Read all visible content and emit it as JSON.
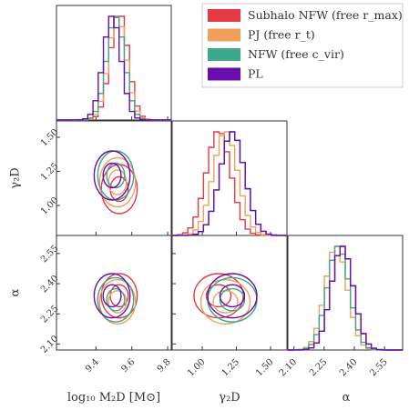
{
  "chart_data": {
    "type": "corner",
    "parameters": [
      {
        "key": "m2d",
        "label": "log₁₀ M₂D [M⊙]",
        "range": [
          9.18,
          9.82
        ],
        "ticks": [
          9.4,
          9.6,
          9.8
        ],
        "tick_labels": [
          "9.4",
          "9.6",
          "9.8"
        ]
      },
      {
        "key": "g2d",
        "label": "γ₂D",
        "range": [
          0.78,
          1.62
        ],
        "ticks": [
          1.0,
          1.25,
          1.5
        ],
        "tick_labels": [
          "1.00",
          "1.25",
          "1.50"
        ]
      },
      {
        "key": "alpha",
        "label": "α",
        "range": [
          2.07,
          2.64
        ],
        "ticks": [
          2.1,
          2.25,
          2.4,
          2.55
        ],
        "tick_labels": [
          "2.10",
          "2.25",
          "2.40",
          "2.55"
        ]
      }
    ],
    "legend": {
      "placement": "top-right"
    },
    "series": [
      {
        "name": "Subhalo NFW (free r_max)",
        "color": "#e63946",
        "mean": [
          9.53,
          1.12,
          2.34
        ],
        "sd": [
          0.05,
          0.09,
          0.055
        ]
      },
      {
        "name": "PJ (free r_t)",
        "color": "#f0a05a",
        "mean": [
          9.52,
          1.17,
          2.31
        ],
        "sd": [
          0.05,
          0.09,
          0.055
        ]
      },
      {
        "name": "NFW (free c_vir)",
        "color": "#3aa88a",
        "mean": [
          9.51,
          1.22,
          2.32
        ],
        "sd": [
          0.05,
          0.09,
          0.055
        ]
      },
      {
        "name": "PL",
        "color": "#6a0dad",
        "mean": [
          9.49,
          1.22,
          2.34
        ],
        "sd": [
          0.05,
          0.09,
          0.055
        ]
      }
    ]
  }
}
